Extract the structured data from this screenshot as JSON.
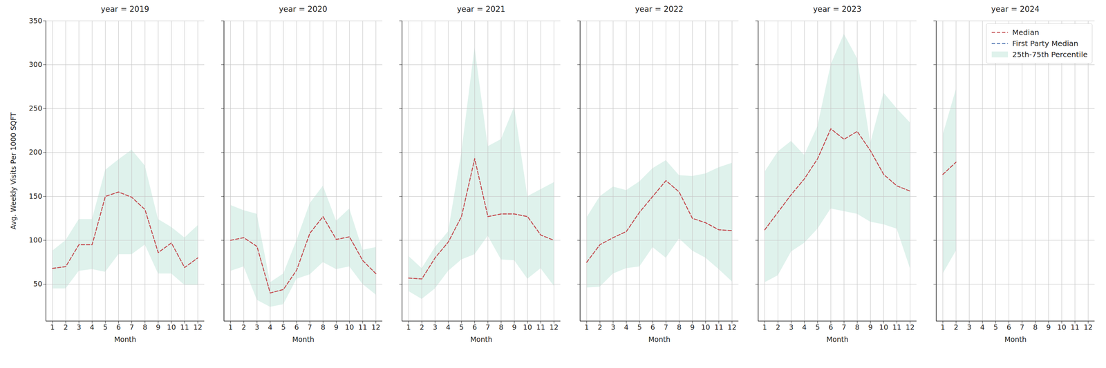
{
  "chart_data": {
    "type": "line",
    "x_label": "Month",
    "y_label": "Avg. Weekly Visits Per 1000 SQFT",
    "xlim": [
      0.5,
      12.5
    ],
    "xticks": [
      1,
      2,
      3,
      4,
      5,
      6,
      7,
      8,
      9,
      10,
      11,
      12
    ],
    "ylim": [
      8,
      350
    ],
    "yticks": [
      50,
      100,
      150,
      200,
      250,
      300,
      350
    ],
    "grid": true,
    "legend": "upper right",
    "series": [
      {
        "name": "Median",
        "type": "line",
        "color": "#c44e52",
        "line_style": "dashed"
      },
      {
        "name": "First Party Median",
        "type": "line",
        "color": "#4c72b0",
        "line_style": "dashed"
      },
      {
        "name": "25th-75th Percentile",
        "type": "area",
        "color": "#dff2ec"
      }
    ],
    "facets": [
      {
        "title": "year = 2019",
        "x": [
          1,
          2,
          3,
          4,
          5,
          6,
          7,
          8,
          9,
          10,
          11,
          12
        ],
        "series": [
          {
            "name": "Median",
            "values": [
              68,
              70,
              95,
              95,
              150,
              155,
              149,
              135,
              86,
              97,
              69,
              80
            ]
          },
          {
            "name": "25th-75th Percentile",
            "lower": [
              45,
              45,
              65,
              67,
              64,
              84,
              84,
              95,
              62,
              62,
              49,
              49
            ],
            "upper": [
              88,
              100,
              124,
              124,
              180,
              192,
              203,
              185,
              124,
              115,
              103,
              117
            ]
          }
        ]
      },
      {
        "title": "year = 2020",
        "x": [
          1,
          2,
          3,
          4,
          5,
          6,
          7,
          8,
          9,
          10,
          11,
          12
        ],
        "series": [
          {
            "name": "Median",
            "values": [
              100,
              103,
              93,
              40,
              44,
              66,
              108,
              127,
              101,
              104,
              77,
              62
            ]
          },
          {
            "name": "25th-75th Percentile",
            "lower": [
              65,
              70,
              32,
              24,
              27,
              56,
              61,
              75,
              67,
              70,
              50,
              38
            ],
            "upper": [
              140,
              134,
              130,
              52,
              62,
              100,
              142,
              162,
              122,
              136,
              89,
              92
            ]
          }
        ]
      },
      {
        "title": "year = 2021",
        "x": [
          1,
          2,
          3,
          4,
          5,
          6,
          7,
          8,
          9,
          10,
          11,
          12
        ],
        "series": [
          {
            "name": "Median",
            "values": [
              57,
              56,
              80,
              98,
              127,
              193,
              127,
              130,
              130,
              127,
              106,
              100
            ]
          },
          {
            "name": "25th-75th Percentile",
            "lower": [
              42,
              33,
              45,
              65,
              78,
              84,
              105,
              78,
              77,
              56,
              68,
              48
            ],
            "upper": [
              82,
              68,
              92,
              110,
              200,
              320,
              207,
              215,
              252,
              150,
              158,
              166
            ]
          }
        ]
      },
      {
        "title": "year = 2022",
        "x": [
          1,
          2,
          3,
          4,
          5,
          6,
          7,
          8,
          9,
          10,
          11,
          12
        ],
        "series": [
          {
            "name": "Median",
            "values": [
              75,
              95,
              103,
              110,
              132,
              150,
              168,
              155,
              125,
              120,
              112,
              111
            ]
          },
          {
            "name": "25th-75th Percentile",
            "lower": [
              46,
              47,
              62,
              68,
              70,
              92,
              80,
              102,
              88,
              80,
              67,
              53
            ],
            "upper": [
              126,
              150,
              161,
              157,
              167,
              182,
              191,
              174,
              173,
              176,
              183,
              188
            ]
          }
        ]
      },
      {
        "title": "year = 2023",
        "x": [
          1,
          2,
          3,
          4,
          5,
          6,
          7,
          8,
          9,
          10,
          11,
          12
        ],
        "series": [
          {
            "name": "Median",
            "values": [
              112,
              132,
              152,
              170,
              193,
              227,
              215,
              224,
              202,
              175,
              162,
              156
            ]
          },
          {
            "name": "25th-75th Percentile",
            "lower": [
              52,
              60,
              87,
              97,
              113,
              136,
              133,
              130,
              121,
              118,
              113,
              68
            ],
            "upper": [
              178,
              201,
              213,
              197,
              230,
              300,
              335,
              307,
              211,
              268,
              250,
              234
            ]
          }
        ]
      },
      {
        "title": "year = 2024",
        "x": [
          1,
          2
        ],
        "series": [
          {
            "name": "Median",
            "values": [
              175,
              189
            ]
          },
          {
            "name": "25th-75th Percentile",
            "lower": [
              62,
              88
            ],
            "upper": [
              220,
              272
            ]
          }
        ]
      }
    ]
  }
}
